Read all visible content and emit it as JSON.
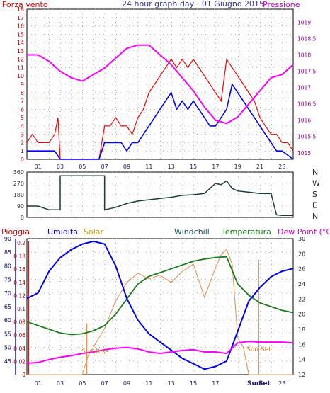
{
  "header": {
    "left_label": "Forza vento",
    "title": "24 hour graph day : 01 Giugno 2015",
    "right_label": "Pressione"
  },
  "colors": {
    "wind": "#ff0000",
    "wind_avg": "#0000ff",
    "pressure": "#ff00ff",
    "direction": "#1a3a3a",
    "humidity": "#0000ff",
    "solar": "#e8935a",
    "windchill": "#1a5a5a",
    "temperature": "#1a7a1a",
    "dewpoint": "#ff00ff",
    "rain": "#ff0000",
    "grid": "#808080"
  },
  "x_ticks": [
    "01",
    "03",
    "05",
    "07",
    "09",
    "11",
    "13",
    "15",
    "17",
    "19",
    "21",
    "23"
  ],
  "direction_labels": [
    "N",
    "W",
    "S",
    "E",
    "N"
  ],
  "bottom_header": {
    "rain": "Pioggia",
    "humidity": "Umidita",
    "solar": "Solar",
    "windchill": "Windchill",
    "temperature": "Temperatura",
    "dewpoint": "Dew Point (°C)"
  },
  "annotations": {
    "sun_rise": "Sun Rise",
    "sun_set": "Sun Set",
    "axis_sun": "Sun",
    "axis_set": "Set"
  },
  "chart_data": [
    {
      "type": "line",
      "name": "wind-pressure",
      "x_range": [
        0,
        24
      ],
      "left_axis": {
        "label": "Forza vento",
        "ylim": [
          0,
          18
        ],
        "ticks": [
          0,
          1,
          2,
          3,
          4,
          5,
          6,
          7,
          8,
          9,
          10,
          11,
          12,
          13,
          14,
          15,
          16,
          17,
          18
        ]
      },
      "right_axis": {
        "label": "Pressione",
        "ylim": [
          1014.8,
          1019.4
        ],
        "ticks": [
          1015,
          1015.5,
          1016,
          1016.5,
          1017,
          1017.5,
          1018,
          1018.5,
          1019
        ]
      },
      "series": [
        {
          "x": [
            0,
            0.5,
            1,
            1.5,
            2,
            2.5,
            2.8,
            3,
            4,
            5,
            6,
            6.5,
            7,
            7.5,
            8,
            8.5,
            9,
            9.5,
            10,
            10.5,
            11,
            11.5,
            12,
            12.5,
            13,
            13.5,
            14,
            14.5,
            15,
            15.5,
            16,
            16.5,
            17,
            17.5,
            18,
            18.5,
            19,
            19.5,
            20,
            20.5,
            21,
            21.5,
            22,
            22.5,
            23,
            23.5,
            24
          ],
          "y": [
            2,
            3,
            2,
            2,
            2,
            3,
            5,
            0,
            0,
            0,
            0,
            0,
            4,
            4,
            5,
            4,
            4,
            3,
            5,
            6,
            8,
            9,
            10,
            11,
            12,
            11,
            12,
            11,
            12,
            11,
            10,
            9,
            8,
            7,
            12,
            11,
            10,
            9,
            8,
            7,
            5,
            4,
            3,
            3,
            2,
            2,
            1
          ]
        },
        {
          "x": [
            0,
            0.5,
            1,
            1.5,
            2,
            2.5,
            3,
            4,
            5,
            6,
            6.5,
            7,
            7.5,
            8,
            8.5,
            9,
            9.5,
            10,
            10.5,
            11,
            11.5,
            12,
            12.5,
            13,
            13.5,
            14,
            14.5,
            15,
            15.5,
            16,
            16.5,
            17,
            17.5,
            18,
            18.5,
            19,
            19.5,
            20,
            20.5,
            21,
            21.5,
            22,
            22.5,
            23,
            23.5,
            24
          ],
          "y": [
            1,
            1,
            1,
            1,
            1,
            1,
            0,
            0,
            0,
            0,
            0,
            2,
            2,
            2,
            2,
            1,
            2,
            2,
            3,
            4,
            5,
            6,
            7,
            8,
            6,
            7,
            6,
            7,
            6,
            5,
            4,
            4,
            5,
            6,
            9,
            8,
            7,
            6,
            5,
            4,
            3,
            2,
            1,
            1,
            0.5,
            0
          ]
        },
        {
          "x": [
            0,
            1,
            2,
            3,
            4,
            5,
            6,
            7,
            8,
            9,
            10,
            11,
            12,
            13,
            14,
            15,
            16,
            17,
            18,
            19,
            20,
            21,
            22,
            23,
            24
          ],
          "y": [
            1018.0,
            1018.0,
            1017.8,
            1017.5,
            1017.3,
            1017.2,
            1017.4,
            1017.6,
            1017.9,
            1018.2,
            1018.3,
            1018.3,
            1018.0,
            1017.7,
            1017.3,
            1016.9,
            1016.4,
            1016.0,
            1015.9,
            1016.1,
            1016.5,
            1016.9,
            1017.3,
            1017.4,
            1017.7
          ]
        }
      ]
    },
    {
      "type": "line",
      "name": "wind-direction",
      "x_range": [
        0,
        24
      ],
      "ylim": [
        0,
        360
      ],
      "ticks": [
        0,
        90,
        180,
        270,
        360
      ],
      "series": [
        {
          "x": [
            0,
            1,
            2,
            2.9,
            3,
            3,
            4,
            5,
            6,
            6.9,
            7,
            7,
            8,
            9,
            10,
            11,
            12,
            13,
            14,
            15,
            16,
            17,
            17.5,
            18,
            18.5,
            19,
            20,
            21,
            22,
            22.5,
            23,
            24
          ],
          "y": [
            90,
            90,
            60,
            60,
            60,
            330,
            330,
            330,
            330,
            330,
            330,
            60,
            80,
            110,
            130,
            140,
            150,
            160,
            175,
            180,
            190,
            270,
            260,
            290,
            230,
            210,
            200,
            190,
            190,
            20,
            15,
            15
          ]
        }
      ]
    },
    {
      "type": "line",
      "name": "temperature-humidity",
      "x_range": [
        0,
        24
      ],
      "left_axes": [
        {
          "label": "Pioggia",
          "ylim": [
            0,
            0.8
          ],
          "ticks": [
            0,
            0.02,
            0.04,
            0.06,
            0.08,
            0.1,
            0.12,
            0.14,
            0.16,
            0.18,
            0.2
          ]
        },
        {
          "label": "Umidita",
          "ylim": [
            40,
            90
          ],
          "ticks": [
            45,
            50,
            55,
            60,
            65,
            70,
            75,
            80,
            85,
            90
          ]
        }
      ],
      "right_axis": {
        "label": "Dew Point (°C)",
        "ylim": [
          12,
          30
        ],
        "ticks": [
          12,
          14,
          16,
          18,
          20,
          22,
          24,
          26,
          28,
          30
        ]
      },
      "series": [
        {
          "x": [
            0,
            1,
            2,
            3,
            4,
            5,
            6,
            7,
            8,
            9,
            10,
            11,
            12,
            13,
            14,
            15,
            16,
            17,
            18,
            19,
            20,
            21,
            22,
            23,
            24
          ],
          "y": [
            68,
            70,
            78,
            83,
            86,
            88,
            89,
            88,
            80,
            68,
            60,
            55,
            52,
            49,
            46,
            44,
            42,
            43,
            45,
            56,
            67,
            72,
            76,
            78,
            79
          ]
        },
        {
          "x": [
            0,
            1,
            2,
            3,
            4,
            5,
            6,
            7,
            8,
            9,
            10,
            11,
            12,
            13,
            14,
            15,
            16,
            17,
            18,
            19,
            20,
            21,
            22,
            23,
            24
          ],
          "y": [
            19,
            18.5,
            18,
            17.5,
            17.3,
            17.4,
            17.8,
            18.5,
            20,
            22,
            24,
            25,
            25.5,
            26,
            26.5,
            27,
            27.3,
            27.5,
            27.6,
            24,
            22.5,
            21.5,
            21,
            20.5,
            20.2
          ]
        },
        {
          "x": [
            0,
            1,
            2,
            3,
            4,
            5,
            6,
            7,
            8,
            9,
            10,
            11,
            12,
            13,
            14,
            15,
            16,
            17,
            18,
            19,
            20,
            21,
            22,
            23,
            24
          ],
          "y": [
            13.5,
            13.6,
            14,
            14.3,
            14.5,
            14.8,
            15,
            15.3,
            15.5,
            15.6,
            15.4,
            15,
            14.8,
            15,
            15.2,
            15.3,
            15,
            15,
            14.8,
            16.2,
            16.4,
            16.3,
            16.3,
            16.3,
            16.2
          ]
        },
        {
          "x": [
            0,
            5,
            5.5,
            6,
            7,
            8,
            9,
            10,
            11,
            12,
            13,
            14,
            15,
            16,
            17,
            17.5,
            18,
            18.5,
            19,
            19.5,
            20,
            21,
            24
          ],
          "y": [
            0,
            0,
            100,
            150,
            250,
            400,
            500,
            550,
            520,
            540,
            500,
            560,
            600,
            420,
            580,
            650,
            680,
            600,
            200,
            150,
            0,
            0,
            0
          ]
        }
      ]
    }
  ]
}
